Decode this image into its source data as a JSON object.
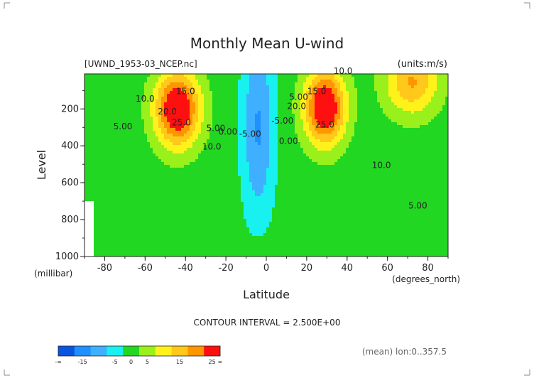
{
  "chart_data": {
    "type": "heatmap",
    "title": "Monthly Mean U-wind",
    "dataset_label": "[UWND_1953-03_NCEP.nc]",
    "units_label": "(units:m/s)",
    "xlabel": "Latitude",
    "x_units_label": "(degrees_north)",
    "ylabel": "Level",
    "y_units_label": "(millibar)",
    "xlim": [
      -90,
      90
    ],
    "ylim": [
      1000,
      10
    ],
    "x_ticks": [
      -80,
      -60,
      -40,
      -20,
      0,
      20,
      40,
      60,
      80
    ],
    "y_ticks": [
      200,
      400,
      600,
      800,
      1000
    ],
    "contour_interval_label": "CONTOUR INTERVAL = 2.500E+00",
    "mean_label": "(mean) lon:0..357.5",
    "contour_labels": [
      {
        "text": "15.0",
        "x": -40,
        "y": 120
      },
      {
        "text": "10.0",
        "x": -60,
        "y": 160
      },
      {
        "text": "20.0",
        "x": -49,
        "y": 230
      },
      {
        "text": "25.0",
        "x": -42,
        "y": 290
      },
      {
        "text": "5.00",
        "x": -71,
        "y": 310
      },
      {
        "text": "5.00",
        "x": -25,
        "y": 320
      },
      {
        "text": "0.00",
        "x": -19,
        "y": 340
      },
      {
        "text": "10.0",
        "x": -27,
        "y": 420
      },
      {
        "text": "-5.00",
        "x": -8,
        "y": 350
      },
      {
        "text": "-5.00",
        "x": 8,
        "y": 280
      },
      {
        "text": "0.00",
        "x": 11,
        "y": 390
      },
      {
        "text": "5.00",
        "x": 16,
        "y": 150
      },
      {
        "text": "15.0",
        "x": 25,
        "y": 120
      },
      {
        "text": "20.0",
        "x": 15,
        "y": 200
      },
      {
        "text": "25.0",
        "x": 29,
        "y": 300
      },
      {
        "text": "10.0",
        "x": 38,
        "y": 10
      },
      {
        "text": "10.0",
        "x": 57,
        "y": 520
      },
      {
        "text": "5.00",
        "x": 75,
        "y": 740
      }
    ],
    "fields": [
      {
        "name": "SH subtropical jet",
        "lat": -44,
        "lev": 200,
        "amp": 31,
        "sx": 11,
        "sy": 200
      },
      {
        "name": "NH subtropical jet",
        "lat": 29,
        "lev": 190,
        "amp": 31,
        "sx": 10,
        "sy": 200
      },
      {
        "name": "NH polar jet",
        "lat": 72,
        "lev": 50,
        "amp": 18,
        "sx": 13,
        "sy": 180
      },
      {
        "name": "equatorial easterlies",
        "lat": -4,
        "lev": 300,
        "amp": -13,
        "sx": 8,
        "sy": 500
      }
    ],
    "colorbar": {
      "ticks": [
        "-∞",
        "-15",
        "-5",
        "0",
        "5",
        "15",
        "25",
        "∞"
      ],
      "levels": [
        -15,
        -10,
        -5,
        0,
        5,
        10,
        15,
        20,
        25
      ],
      "colors": [
        "#0a55e0",
        "#1e90ff",
        "#3fb0ff",
        "#19f0f0",
        "#22d722",
        "#9af01a",
        "#fff21a",
        "#ffc81a",
        "#ff9500",
        "#ff1010"
      ]
    }
  }
}
